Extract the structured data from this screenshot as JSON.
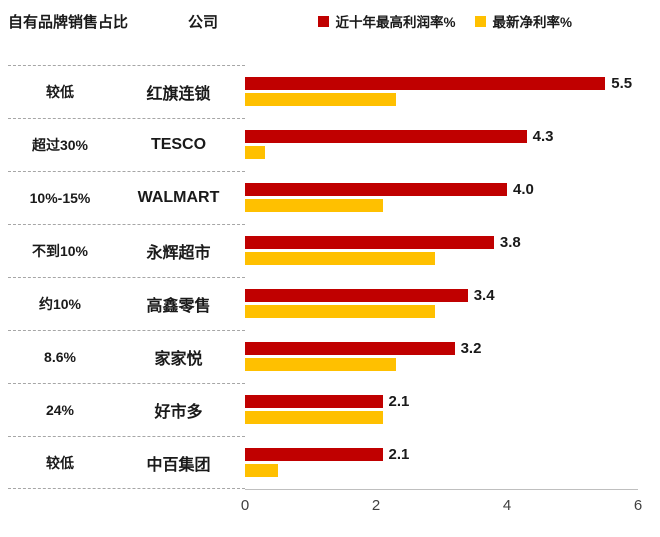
{
  "header": {
    "share_title": "自有品牌销售占比",
    "company_title": "公司"
  },
  "legend": [
    {
      "label": "近十年最高利润率%",
      "color": "#c00000"
    },
    {
      "label": "最新净利率%",
      "color": "#ffc000"
    }
  ],
  "chart_data": {
    "type": "bar",
    "orientation": "horizontal",
    "categories": [
      "红旗连锁",
      "TESCO",
      "WALMART",
      "永辉超市",
      "高鑫零售",
      "家家悦",
      "好市多",
      "中百集团"
    ],
    "share_labels": [
      "较低",
      "超过30%",
      "10%-15%",
      "不到10%",
      "约10%",
      "8.6%",
      "24%",
      "较低"
    ],
    "series": [
      {
        "name": "近十年最高利润率%",
        "color": "#c00000",
        "values": [
          5.5,
          4.3,
          4.0,
          3.8,
          3.4,
          3.2,
          2.1,
          2.1
        ]
      },
      {
        "name": "最新净利率%",
        "color": "#ffc000",
        "values": [
          2.3,
          0.3,
          2.1,
          2.9,
          2.9,
          2.3,
          2.1,
          0.5
        ]
      }
    ],
    "value_labels": [
      "5.5",
      "4.3",
      "4.0",
      "3.8",
      "3.4",
      "3.2",
      "2.1",
      "2.1"
    ],
    "x_ticks": [
      "0",
      "2",
      "4",
      "6"
    ],
    "xlim": [
      0,
      6
    ],
    "grid": false,
    "legend_position": "top-right"
  }
}
